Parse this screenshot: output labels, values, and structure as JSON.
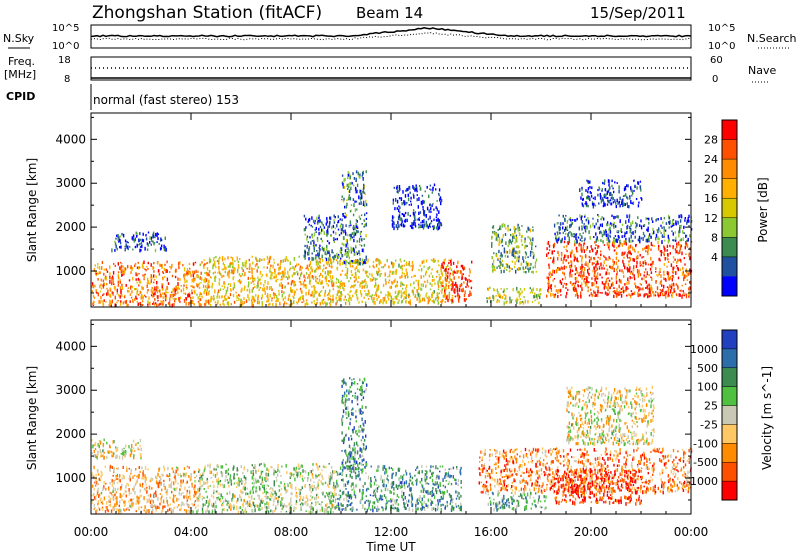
{
  "chart_data": {
    "type": "heatmap",
    "title": "Zhongshan Station (fitACF)",
    "beam": "Beam 14",
    "date": "15/Sep/2011",
    "xlabel": "Time UT",
    "x_ticks": [
      "00:00",
      "04:00",
      "08:00",
      "12:00",
      "16:00",
      "20:00",
      "00:00"
    ],
    "x_range_hours": [
      0,
      24
    ],
    "header": {
      "nsky_label": "N.Sky",
      "nsky_ticks": [
        "10^5",
        "10^0"
      ],
      "nsearch_label": "N.Search",
      "nsearch_ticks": [
        "10^5",
        "10^0"
      ],
      "freq_label": "Freq.",
      "freq_unit": "[MHz]",
      "freq_ticks": [
        "18",
        "8"
      ],
      "nave_label": "Nave",
      "nave_ticks": [
        "60",
        "0"
      ],
      "cpid_label": "CPID",
      "cpid_text": "normal (fast stereo) 153"
    },
    "panels": [
      {
        "name": "power",
        "ylabel": "Slant Range [km]",
        "y_ticks": [
          1000,
          2000,
          3000,
          4000
        ],
        "ylim": [
          180,
          4600
        ],
        "colorbar_label": "Power [dB]",
        "colorbar_ticks": [
          "28",
          "24",
          "20",
          "16",
          "12",
          "8",
          "4"
        ],
        "colors": [
          "#ff0000",
          "#ff5000",
          "#ff8c00",
          "#ffb000",
          "#d8c800",
          "#8cc832",
          "#3c8c50",
          "#2050a0",
          "#0000ff"
        ],
        "scatter_bands": [
          {
            "t0": 0,
            "t1": 4.2,
            "r0": 250,
            "r1": 1250,
            "level": 0.75
          },
          {
            "t0": 0.8,
            "t1": 3.0,
            "r0": 1500,
            "r1": 1900,
            "level": 0.15
          },
          {
            "t0": 4.2,
            "t1": 9.8,
            "r0": 250,
            "r1": 1350,
            "level": 0.6
          },
          {
            "t0": 9.8,
            "t1": 14.5,
            "r0": 300,
            "r1": 1300,
            "level": 0.55
          },
          {
            "t0": 14.0,
            "t1": 15.2,
            "r0": 350,
            "r1": 1250,
            "level": 0.9
          },
          {
            "t0": 10.0,
            "t1": 11.0,
            "r0": 1200,
            "r1": 3300,
            "level": 0.25
          },
          {
            "t0": 8.5,
            "t1": 10.0,
            "r0": 1300,
            "r1": 2300,
            "level": 0.2
          },
          {
            "t0": 15.8,
            "t1": 18.0,
            "r0": 300,
            "r1": 650,
            "level": 0.45
          },
          {
            "t0": 16.0,
            "t1": 17.8,
            "r0": 1000,
            "r1": 2100,
            "level": 0.35
          },
          {
            "t0": 18.2,
            "t1": 24,
            "r0": 450,
            "r1": 1700,
            "level": 0.85
          },
          {
            "t0": 18.5,
            "t1": 24,
            "r0": 1700,
            "r1": 2300,
            "level": 0.2
          },
          {
            "t0": 19.5,
            "t1": 22.0,
            "r0": 2500,
            "r1": 3100,
            "level": 0.1
          },
          {
            "t0": 12.0,
            "t1": 14.0,
            "r0": 2000,
            "r1": 3000,
            "level": 0.1
          }
        ]
      },
      {
        "name": "velocity",
        "ylabel": "Slant Range [km]",
        "y_ticks": [
          1000,
          2000,
          3000,
          4000
        ],
        "ylim": [
          180,
          4600
        ],
        "colorbar_label": "Velocity [m s^-1]",
        "colorbar_ticks": [
          "1000",
          "500",
          "100",
          "25",
          "-25",
          "-100",
          "-500",
          "-1000"
        ],
        "colors": [
          "#2040c0",
          "#2c6eaa",
          "#3c8c50",
          "#50c040",
          "#c8c8b4",
          "#ffc864",
          "#ff8c00",
          "#ff5000",
          "#ff0000"
        ],
        "scatter_bands": [
          {
            "t0": 0,
            "t1": 4.2,
            "r0": 250,
            "r1": 1300,
            "level": 0.35
          },
          {
            "t0": 0,
            "t1": 2.0,
            "r0": 1500,
            "r1": 1900,
            "level": 0.45
          },
          {
            "t0": 4.2,
            "t1": 9.8,
            "r0": 250,
            "r1": 1350,
            "level": 0.55
          },
          {
            "t0": 9.8,
            "t1": 14.8,
            "r0": 300,
            "r1": 1300,
            "level": 0.7
          },
          {
            "t0": 10.0,
            "t1": 11.0,
            "r0": 1200,
            "r1": 3300,
            "level": 0.75
          },
          {
            "t0": 15.8,
            "t1": 18.2,
            "r0": 300,
            "r1": 700,
            "level": 0.65
          },
          {
            "t0": 15.5,
            "t1": 24,
            "r0": 700,
            "r1": 1700,
            "level": 0.25
          },
          {
            "t0": 19.0,
            "t1": 22.5,
            "r0": 1800,
            "r1": 3100,
            "level": 0.45
          },
          {
            "t0": 18.5,
            "t1": 22.0,
            "r0": 450,
            "r1": 1250,
            "level": 0.1
          }
        ]
      }
    ]
  }
}
